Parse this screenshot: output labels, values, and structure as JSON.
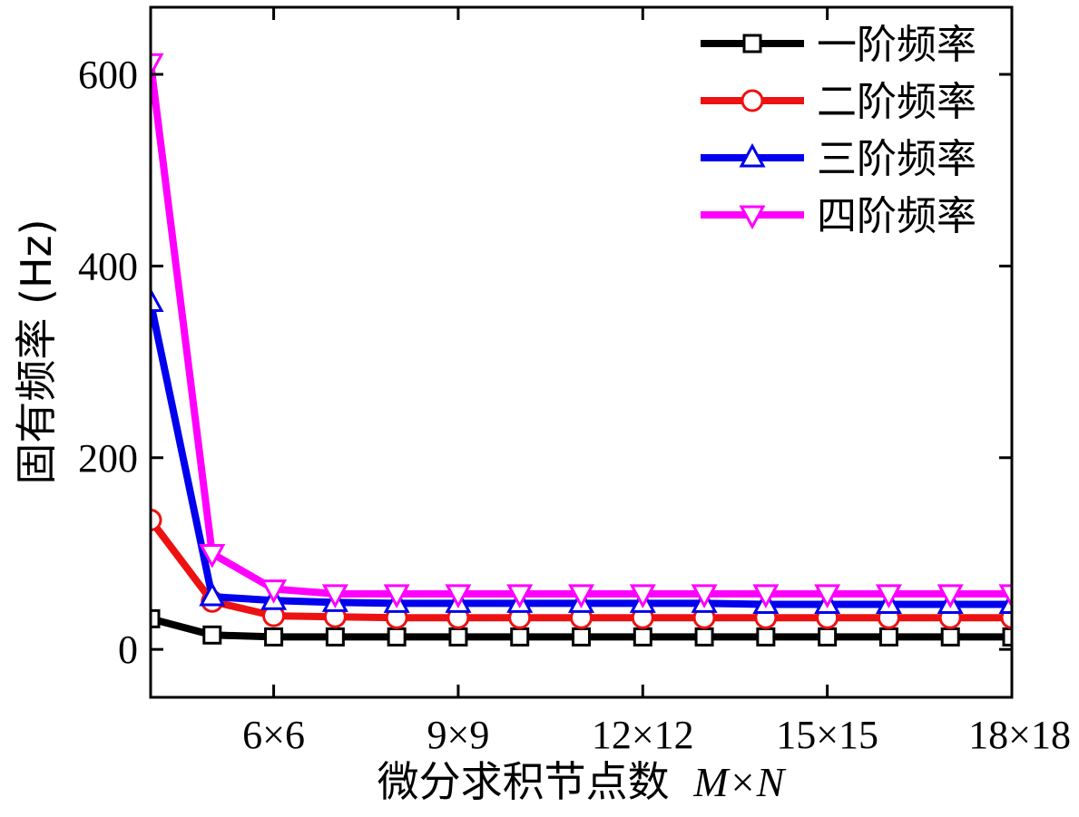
{
  "chart_data": {
    "type": "line",
    "title": "",
    "xlabel": "微分求积节点数",
    "xlabel_var_m": "M",
    "xlabel_times": "×",
    "xlabel_var_n": "N",
    "ylabel": "固有频率 (Hz)",
    "x": [
      4,
      5,
      6,
      7,
      8,
      9,
      10,
      11,
      12,
      13,
      14,
      15,
      16,
      17,
      18
    ],
    "xlim": [
      4,
      18
    ],
    "ylim": [
      -50,
      670
    ],
    "x_ticks": [
      {
        "value": 6,
        "label": "6×6"
      },
      {
        "value": 9,
        "label": "9×9"
      },
      {
        "value": 12,
        "label": "12×12"
      },
      {
        "value": 15,
        "label": "15×15"
      },
      {
        "value": 18,
        "label": "18×18"
      }
    ],
    "y_ticks": [
      {
        "value": 0,
        "label": "0"
      },
      {
        "value": 200,
        "label": "200"
      },
      {
        "value": 400,
        "label": "400"
      },
      {
        "value": 600,
        "label": "600"
      }
    ],
    "legend_position": "top-right",
    "grid": false,
    "series": [
      {
        "name": "一阶频率",
        "color": "#000000",
        "marker": "square",
        "values": [
          32,
          15,
          13,
          13,
          13,
          13,
          13,
          13,
          13,
          13,
          13,
          13,
          13,
          13,
          13
        ]
      },
      {
        "name": "二阶频率",
        "color": "#ee1111",
        "marker": "circle",
        "values": [
          135,
          50,
          35,
          34,
          33,
          33,
          33,
          33,
          33,
          33,
          33,
          33,
          33,
          33,
          33
        ]
      },
      {
        "name": "三阶频率",
        "color": "#0000ee",
        "marker": "triangle-up",
        "values": [
          362,
          55,
          51,
          49,
          48,
          48,
          48,
          48,
          48,
          48,
          47,
          47,
          47,
          47,
          47
        ]
      },
      {
        "name": "四阶频率",
        "color": "#ff00ff",
        "marker": "triangle-down",
        "values": [
          612,
          100,
          63,
          58,
          58,
          58,
          58,
          58,
          58,
          58,
          58,
          58,
          58,
          58,
          58
        ]
      }
    ]
  }
}
